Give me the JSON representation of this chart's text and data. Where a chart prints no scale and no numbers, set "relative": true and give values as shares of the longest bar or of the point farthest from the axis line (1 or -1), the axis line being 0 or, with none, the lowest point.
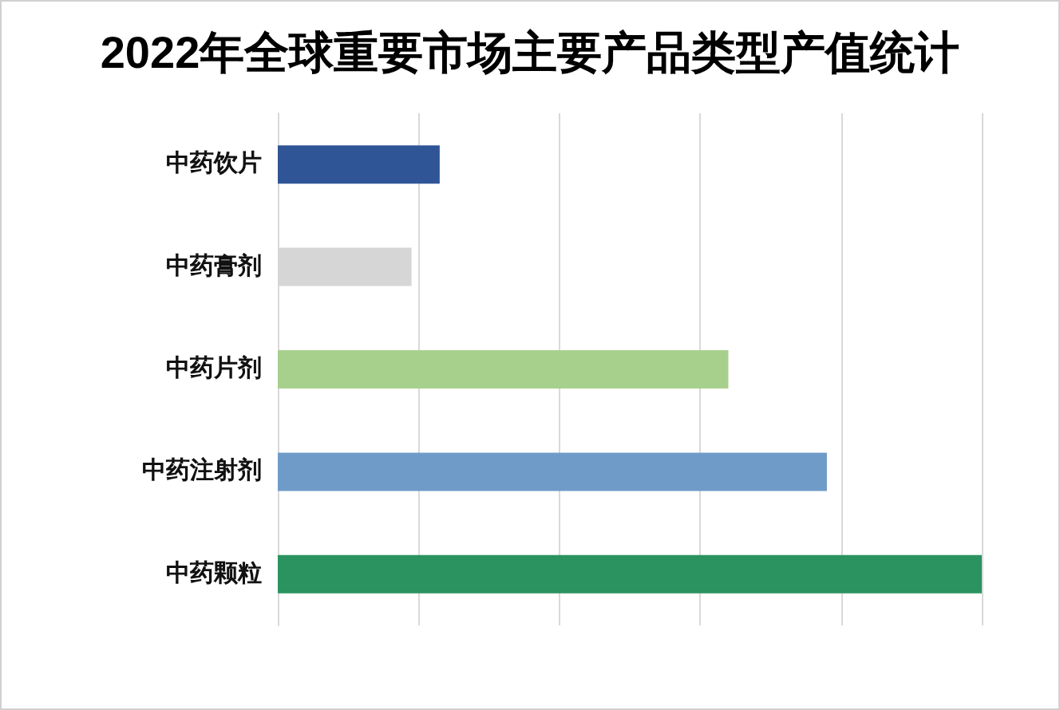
{
  "chart_data": {
    "type": "bar",
    "orientation": "horizontal",
    "relative": true,
    "title": "2022年全球重要市场主要产品类型产值统计",
    "categories": [
      "中药饮片",
      "中药膏剂",
      "中药片剂",
      "中药注射剂",
      "中药颗粒"
    ],
    "values": [
      0.23,
      0.19,
      0.64,
      0.78,
      1
    ],
    "colors": [
      "#2f5597",
      "#d6d6d6",
      "#a8d08d",
      "#6f9bc8",
      "#2a935f"
    ],
    "grid": "x"
  }
}
